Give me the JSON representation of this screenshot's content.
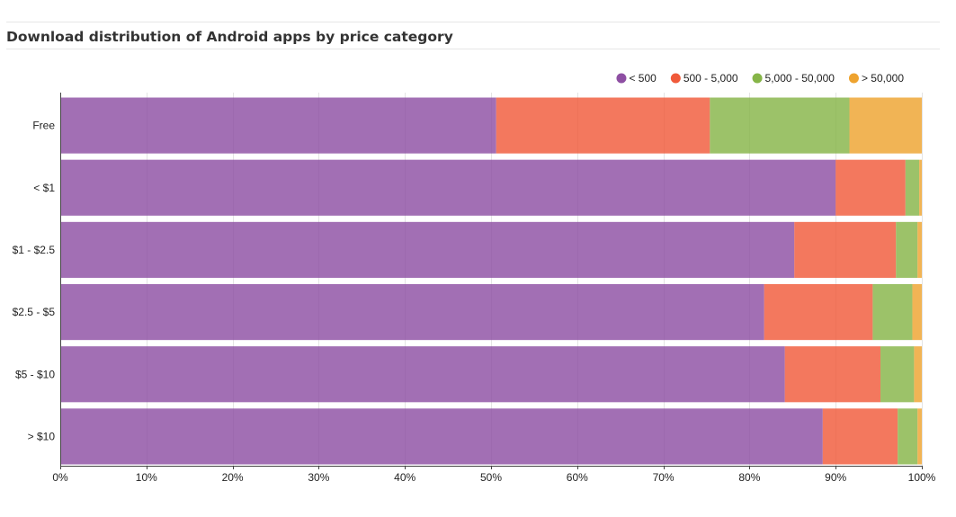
{
  "chart_data": {
    "type": "bar",
    "orientation": "horizontal",
    "stacked": true,
    "normalized": true,
    "title": "Download distribution of Android apps by price category",
    "xlabel": "",
    "ylabel": "",
    "xlim": [
      0,
      100
    ],
    "x_ticks": [
      "0%",
      "10%",
      "20%",
      "30%",
      "40%",
      "50%",
      "60%",
      "70%",
      "80%",
      "90%",
      "100%"
    ],
    "grid": true,
    "legend_position": "top-right",
    "categories": [
      "Free",
      "< $1",
      "$1 - $2.5",
      "$2.5 - $5",
      "$5 - $10",
      "> $10"
    ],
    "series": [
      {
        "name": "< 500",
        "color": "#8e4fa3",
        "values": [
          50.6,
          90.0,
          85.2,
          81.7,
          84.1,
          88.5
        ]
      },
      {
        "name": "500 - 5,000",
        "color": "#f05a3a",
        "values": [
          24.8,
          8.1,
          11.8,
          12.6,
          11.1,
          8.7
        ]
      },
      {
        "name": "5,000 - 50,000",
        "color": "#86b548",
        "values": [
          16.2,
          1.6,
          2.5,
          4.6,
          3.9,
          2.3
        ]
      },
      {
        "name": "> 50,000",
        "color": "#eea32f",
        "values": [
          8.4,
          0.3,
          0.5,
          1.1,
          0.9,
          0.5
        ]
      }
    ]
  }
}
